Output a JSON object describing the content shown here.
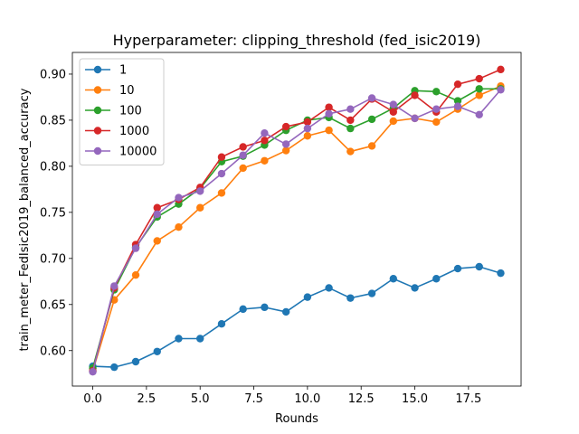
{
  "chart_data": {
    "type": "line",
    "title": "Hyperparameter: clipping_threshold (fed_isic2019)",
    "xlabel": "Rounds",
    "ylabel": "train_meter_FedIsic2019_balanced_accuracy",
    "xlim": [
      -0.95,
      19.95
    ],
    "ylim": [
      0.5615,
      0.9235
    ],
    "x_ticks": [
      0.0,
      2.5,
      5.0,
      7.5,
      10.0,
      12.5,
      15.0,
      17.5
    ],
    "x_tick_labels": [
      "0.0",
      "2.5",
      "5.0",
      "7.5",
      "10.0",
      "12.5",
      "15.0",
      "17.5"
    ],
    "y_ticks": [
      0.6,
      0.65,
      0.7,
      0.75,
      0.8,
      0.85,
      0.9
    ],
    "y_tick_labels": [
      "0.60",
      "0.65",
      "0.70",
      "0.75",
      "0.80",
      "0.85",
      "0.90"
    ],
    "grid": false,
    "legend_position": "top-left",
    "x": [
      0,
      1,
      2,
      3,
      4,
      5,
      6,
      7,
      8,
      9,
      10,
      11,
      12,
      13,
      14,
      15,
      16,
      17,
      18,
      19
    ],
    "series": [
      {
        "name": "1",
        "color": "#1f77b4",
        "values": [
          0.583,
          0.582,
          0.588,
          0.599,
          0.613,
          0.613,
          0.629,
          0.645,
          0.647,
          0.642,
          0.658,
          0.668,
          0.657,
          0.662,
          0.678,
          0.668,
          0.678,
          0.689,
          0.691,
          0.684
        ]
      },
      {
        "name": "10",
        "color": "#ff7f0e",
        "values": [
          0.578,
          0.655,
          0.682,
          0.719,
          0.734,
          0.755,
          0.771,
          0.798,
          0.806,
          0.817,
          0.833,
          0.839,
          0.816,
          0.822,
          0.849,
          0.852,
          0.848,
          0.862,
          0.877,
          0.887
        ]
      },
      {
        "name": "100",
        "color": "#2ca02c",
        "values": [
          0.581,
          0.666,
          0.712,
          0.745,
          0.759,
          0.776,
          0.805,
          0.811,
          0.823,
          0.839,
          0.85,
          0.853,
          0.841,
          0.851,
          0.863,
          0.882,
          0.881,
          0.871,
          0.884,
          0.884
        ]
      },
      {
        "name": "1000",
        "color": "#d62728",
        "values": [
          0.578,
          0.668,
          0.715,
          0.755,
          0.764,
          0.777,
          0.81,
          0.821,
          0.828,
          0.843,
          0.848,
          0.864,
          0.85,
          0.873,
          0.859,
          0.877,
          0.859,
          0.889,
          0.895,
          0.905
        ]
      },
      {
        "name": "10000",
        "color": "#9467bd",
        "values": [
          0.577,
          0.67,
          0.711,
          0.748,
          0.766,
          0.773,
          0.792,
          0.812,
          0.836,
          0.824,
          0.841,
          0.857,
          0.862,
          0.874,
          0.867,
          0.852,
          0.862,
          0.865,
          0.856,
          0.883
        ]
      }
    ]
  }
}
